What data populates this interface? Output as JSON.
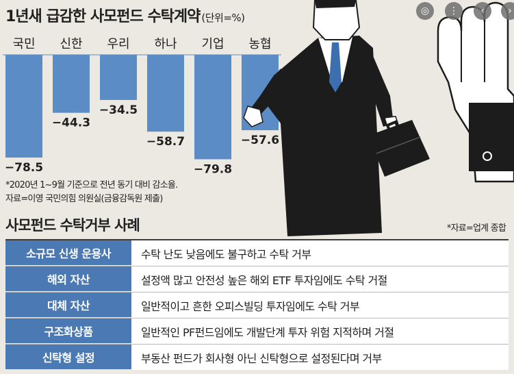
{
  "header": {
    "title": "1년새 급감한 사모펀드 수탁계약",
    "unit": "(단위=%)"
  },
  "chart_data": {
    "type": "bar",
    "title": "1년새 급감한 사모펀드 수탁계약",
    "unit": "(단위=%)",
    "categories": [
      "국민",
      "신한",
      "우리",
      "하나",
      "기업",
      "농협"
    ],
    "values": [
      -78.5,
      -44.3,
      -34.5,
      -58.7,
      -79.8,
      -57.6
    ],
    "value_labels": [
      "−78.5",
      "−44.3",
      "−34.5",
      "−58.7",
      "−79.8",
      "−57.6"
    ],
    "ylim": [
      -90,
      0
    ],
    "bar_color": "#5b8cc6",
    "grid": false,
    "legend": "none"
  },
  "notes": {
    "line1": "*2020년 1~9월 기준으로 전년 동기 대비 감소율.",
    "line2": "자료=이영 국민의힘 의원실(금융감독원 제출)"
  },
  "cases": {
    "title": "사모펀드 수탁거부 사례",
    "source": "*자료=업계 종합",
    "rows": [
      {
        "category": "소규모 신생 운용사",
        "description": "수탁 난도 낮음에도 불구하고 수탁 거부"
      },
      {
        "category": "해외 자산",
        "description": "설정액 많고 안전성 높은 해외 ETF 투자임에도 수탁 거절"
      },
      {
        "category": "대체 자산",
        "description": "일반적이고 흔한 오피스빌딩 투자임에도 수탁 거부"
      },
      {
        "category": "구조화상품",
        "description": "일반적인 PF펀드임에도 개발단계 투자 위험 지적하며 거절"
      },
      {
        "category": "신탁형 설정",
        "description": "부동산 펀드가 회사형 아닌 신탁형으로 설정된다며 거부"
      }
    ]
  },
  "colors": {
    "accent": "#4a79b4",
    "bar": "#5b8cc6",
    "background": "#ece9e2"
  },
  "icons": {
    "viewer_controls": [
      "lens-icon",
      "more-icon",
      "prev-icon",
      "next-icon"
    ]
  }
}
